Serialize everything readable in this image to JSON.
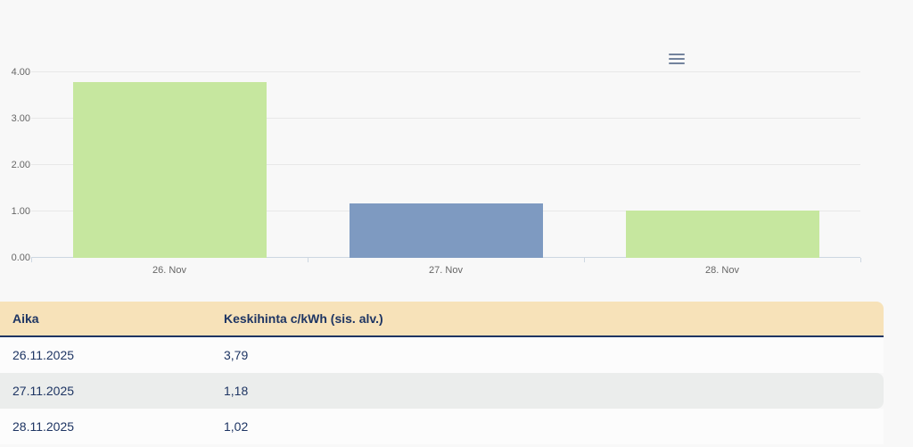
{
  "page": {
    "background": "#f8f8f8"
  },
  "chart": {
    "menu_button": {
      "icon": "hamburger-menu-icon"
    }
  },
  "chart_data": {
    "type": "bar",
    "title": "",
    "xlabel": "",
    "ylabel": "",
    "categories": [
      "26. Nov",
      "27. Nov",
      "28. Nov"
    ],
    "values": [
      3.79,
      1.18,
      1.02
    ],
    "bar_colors": [
      "#c6e79f",
      "#7e9ac1",
      "#c6e79f"
    ],
    "ylim": [
      0,
      4
    ],
    "yticks": [
      0,
      1,
      2,
      3,
      4
    ],
    "ytick_labels": [
      "0.00",
      "1.00",
      "2.00",
      "3.00",
      "4.00"
    ],
    "grid": true,
    "legend": false,
    "axis_label_color": "#666666",
    "gridline_color": "#e8e8e8",
    "axis_line_color": "#cdd7e1"
  },
  "table": {
    "columns": [
      "Aika",
      "Keskihinta c/kWh (sis. alv.)"
    ],
    "rows": [
      [
        "26.11.2025",
        "3,79"
      ],
      [
        "27.11.2025",
        "1,18"
      ],
      [
        "28.11.2025",
        "1,02"
      ]
    ],
    "header_bg": "#f7e2b9",
    "row_bg": "#fcfcfc",
    "row_alt_bg": "#ebedec",
    "text_color": "#1e3563",
    "divider_color": "#1e3563"
  }
}
